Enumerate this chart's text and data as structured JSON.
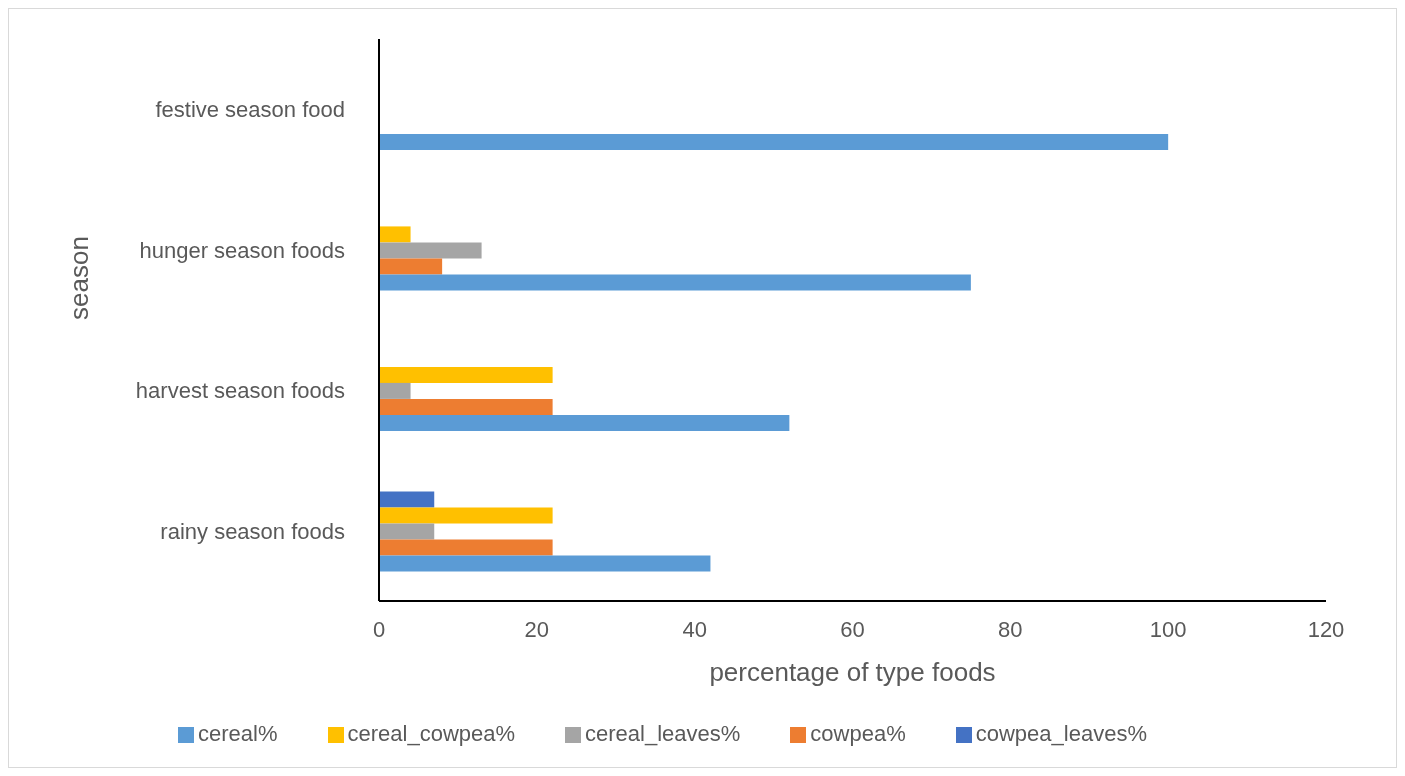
{
  "chart_data": {
    "type": "bar",
    "orientation": "horizontal",
    "xlabel": "percentage of type foods",
    "ylabel": "season",
    "categories": [
      "festive season food",
      "hunger season foods",
      "harvest season foods",
      "rainy season foods"
    ],
    "series": [
      {
        "name": "cowpea_leaves%",
        "color": "#4472c4",
        "values": [
          0,
          0,
          0,
          7
        ]
      },
      {
        "name": "cereal_cowpea%",
        "color": "#ffc000",
        "values": [
          0,
          4,
          22,
          22
        ]
      },
      {
        "name": "cereal_leaves%",
        "color": "#a5a5a5",
        "values": [
          0,
          13,
          4,
          7
        ]
      },
      {
        "name": "cowpea%",
        "color": "#ed7d31",
        "values": [
          0,
          8,
          22,
          22
        ]
      },
      {
        "name": "cereal%",
        "color": "#5b9bd5",
        "values": [
          100,
          75,
          52,
          42
        ]
      }
    ],
    "xlim": [
      0,
      120
    ],
    "xticks": [
      0,
      20,
      40,
      60,
      80,
      100,
      120
    ],
    "grid": false,
    "legend": "bottom"
  }
}
